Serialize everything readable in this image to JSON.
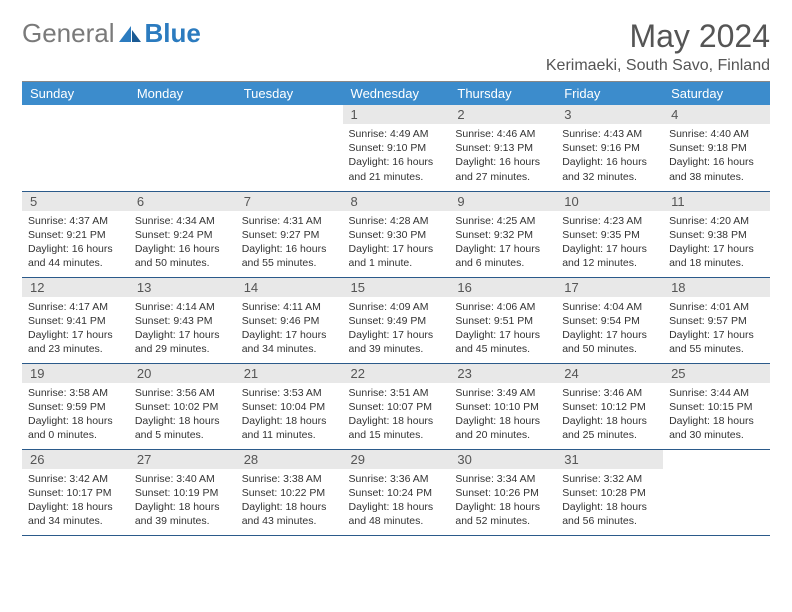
{
  "logo": {
    "general": "General",
    "blue": "Blue"
  },
  "title": "May 2024",
  "location": "Kerimaeki, South Savo, Finland",
  "colors": {
    "header_bg": "#3c8ccc",
    "daynum_bg": "#e8e8e8",
    "row_border": "#2b5a8a",
    "text": "#333333",
    "muted": "#555555",
    "brand_blue": "#2b7bbf",
    "brand_gray": "#7a7a7a"
  },
  "weekday_labels": [
    "Sunday",
    "Monday",
    "Tuesday",
    "Wednesday",
    "Thursday",
    "Friday",
    "Saturday"
  ],
  "weeks": [
    [
      null,
      null,
      null,
      {
        "n": "1",
        "sr": "4:49 AM",
        "ss": "9:10 PM",
        "dl": "16 hours and 21 minutes."
      },
      {
        "n": "2",
        "sr": "4:46 AM",
        "ss": "9:13 PM",
        "dl": "16 hours and 27 minutes."
      },
      {
        "n": "3",
        "sr": "4:43 AM",
        "ss": "9:16 PM",
        "dl": "16 hours and 32 minutes."
      },
      {
        "n": "4",
        "sr": "4:40 AM",
        "ss": "9:18 PM",
        "dl": "16 hours and 38 minutes."
      }
    ],
    [
      {
        "n": "5",
        "sr": "4:37 AM",
        "ss": "9:21 PM",
        "dl": "16 hours and 44 minutes."
      },
      {
        "n": "6",
        "sr": "4:34 AM",
        "ss": "9:24 PM",
        "dl": "16 hours and 50 minutes."
      },
      {
        "n": "7",
        "sr": "4:31 AM",
        "ss": "9:27 PM",
        "dl": "16 hours and 55 minutes."
      },
      {
        "n": "8",
        "sr": "4:28 AM",
        "ss": "9:30 PM",
        "dl": "17 hours and 1 minute."
      },
      {
        "n": "9",
        "sr": "4:25 AM",
        "ss": "9:32 PM",
        "dl": "17 hours and 6 minutes."
      },
      {
        "n": "10",
        "sr": "4:23 AM",
        "ss": "9:35 PM",
        "dl": "17 hours and 12 minutes."
      },
      {
        "n": "11",
        "sr": "4:20 AM",
        "ss": "9:38 PM",
        "dl": "17 hours and 18 minutes."
      }
    ],
    [
      {
        "n": "12",
        "sr": "4:17 AM",
        "ss": "9:41 PM",
        "dl": "17 hours and 23 minutes."
      },
      {
        "n": "13",
        "sr": "4:14 AM",
        "ss": "9:43 PM",
        "dl": "17 hours and 29 minutes."
      },
      {
        "n": "14",
        "sr": "4:11 AM",
        "ss": "9:46 PM",
        "dl": "17 hours and 34 minutes."
      },
      {
        "n": "15",
        "sr": "4:09 AM",
        "ss": "9:49 PM",
        "dl": "17 hours and 39 minutes."
      },
      {
        "n": "16",
        "sr": "4:06 AM",
        "ss": "9:51 PM",
        "dl": "17 hours and 45 minutes."
      },
      {
        "n": "17",
        "sr": "4:04 AM",
        "ss": "9:54 PM",
        "dl": "17 hours and 50 minutes."
      },
      {
        "n": "18",
        "sr": "4:01 AM",
        "ss": "9:57 PM",
        "dl": "17 hours and 55 minutes."
      }
    ],
    [
      {
        "n": "19",
        "sr": "3:58 AM",
        "ss": "9:59 PM",
        "dl": "18 hours and 0 minutes."
      },
      {
        "n": "20",
        "sr": "3:56 AM",
        "ss": "10:02 PM",
        "dl": "18 hours and 5 minutes."
      },
      {
        "n": "21",
        "sr": "3:53 AM",
        "ss": "10:04 PM",
        "dl": "18 hours and 11 minutes."
      },
      {
        "n": "22",
        "sr": "3:51 AM",
        "ss": "10:07 PM",
        "dl": "18 hours and 15 minutes."
      },
      {
        "n": "23",
        "sr": "3:49 AM",
        "ss": "10:10 PM",
        "dl": "18 hours and 20 minutes."
      },
      {
        "n": "24",
        "sr": "3:46 AM",
        "ss": "10:12 PM",
        "dl": "18 hours and 25 minutes."
      },
      {
        "n": "25",
        "sr": "3:44 AM",
        "ss": "10:15 PM",
        "dl": "18 hours and 30 minutes."
      }
    ],
    [
      {
        "n": "26",
        "sr": "3:42 AM",
        "ss": "10:17 PM",
        "dl": "18 hours and 34 minutes."
      },
      {
        "n": "27",
        "sr": "3:40 AM",
        "ss": "10:19 PM",
        "dl": "18 hours and 39 minutes."
      },
      {
        "n": "28",
        "sr": "3:38 AM",
        "ss": "10:22 PM",
        "dl": "18 hours and 43 minutes."
      },
      {
        "n": "29",
        "sr": "3:36 AM",
        "ss": "10:24 PM",
        "dl": "18 hours and 48 minutes."
      },
      {
        "n": "30",
        "sr": "3:34 AM",
        "ss": "10:26 PM",
        "dl": "18 hours and 52 minutes."
      },
      {
        "n": "31",
        "sr": "3:32 AM",
        "ss": "10:28 PM",
        "dl": "18 hours and 56 minutes."
      },
      null
    ]
  ],
  "labels": {
    "sunrise": "Sunrise:",
    "sunset": "Sunset:",
    "daylight": "Daylight:"
  }
}
